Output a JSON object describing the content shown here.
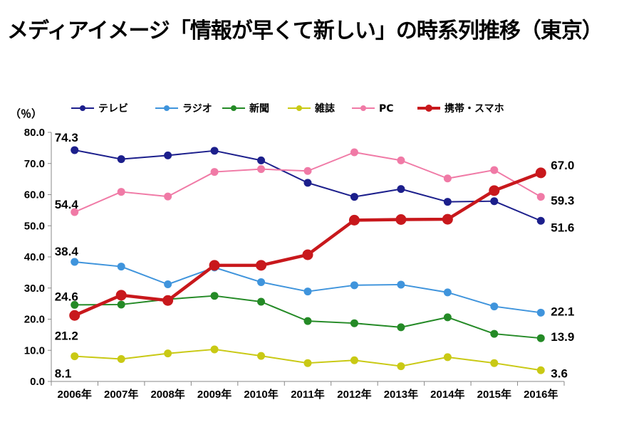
{
  "chart_data": {
    "type": "line",
    "title": "メディアイメージ「情報が早くて新しい」の時系列推移（東京）",
    "ylabel": "（％）",
    "xlabel": "",
    "ylim": [
      0,
      80
    ],
    "yticks": [
      "0.0",
      "10.0",
      "20.0",
      "30.0",
      "40.0",
      "50.0",
      "60.0",
      "70.0",
      "80.0"
    ],
    "categories": [
      "2006年",
      "2007年",
      "2008年",
      "2009年",
      "2010年",
      "2011年",
      "2012年",
      "2013年",
      "2014年",
      "2015年",
      "2016年"
    ],
    "series": [
      {
        "name": "テレビ",
        "color": "#1c1f8c",
        "values": [
          74.3,
          71.4,
          72.6,
          74.1,
          71.0,
          63.8,
          59.3,
          61.8,
          57.7,
          57.9,
          51.6
        ]
      },
      {
        "name": "ラジオ",
        "color": "#3f94dc",
        "values": [
          38.4,
          36.9,
          31.2,
          36.6,
          31.9,
          28.9,
          30.9,
          31.1,
          28.6,
          24.1,
          22.1
        ]
      },
      {
        "name": "新聞",
        "color": "#248a26",
        "values": [
          24.6,
          24.7,
          26.4,
          27.5,
          25.6,
          19.4,
          18.7,
          17.4,
          20.6,
          15.3,
          13.9
        ]
      },
      {
        "name": "雑誌",
        "color": "#c9c914",
        "values": [
          8.1,
          7.2,
          9.0,
          10.3,
          8.2,
          5.9,
          6.8,
          4.9,
          7.8,
          5.9,
          3.6
        ]
      },
      {
        "name": "PC",
        "color": "#f07aa6",
        "values": [
          54.4,
          60.9,
          59.4,
          67.3,
          68.2,
          67.6,
          73.6,
          71.0,
          65.2,
          67.9,
          59.3
        ]
      },
      {
        "name": "携帯・スマホ",
        "color": "#c8181c",
        "values": [
          21.2,
          27.7,
          26.0,
          37.3,
          37.3,
          40.7,
          51.8,
          52.0,
          52.1,
          61.3,
          67.0
        ]
      }
    ],
    "data_labels": [
      {
        "series": 0,
        "index": 0,
        "text": "74.3"
      },
      {
        "series": 0,
        "index": 10,
        "text": "51.6"
      },
      {
        "series": 1,
        "index": 0,
        "text": "38.4"
      },
      {
        "series": 1,
        "index": 10,
        "text": "22.1"
      },
      {
        "series": 2,
        "index": 0,
        "text": "24.6"
      },
      {
        "series": 2,
        "index": 10,
        "text": "13.9"
      },
      {
        "series": 3,
        "index": 0,
        "text": "8.1"
      },
      {
        "series": 3,
        "index": 10,
        "text": "3.6"
      },
      {
        "series": 4,
        "index": 0,
        "text": "54.4"
      },
      {
        "series": 4,
        "index": 10,
        "text": "59.3"
      },
      {
        "series": 5,
        "index": 0,
        "text": "21.2"
      },
      {
        "series": 5,
        "index": 10,
        "text": "67.0"
      }
    ],
    "legend_position": "top"
  }
}
